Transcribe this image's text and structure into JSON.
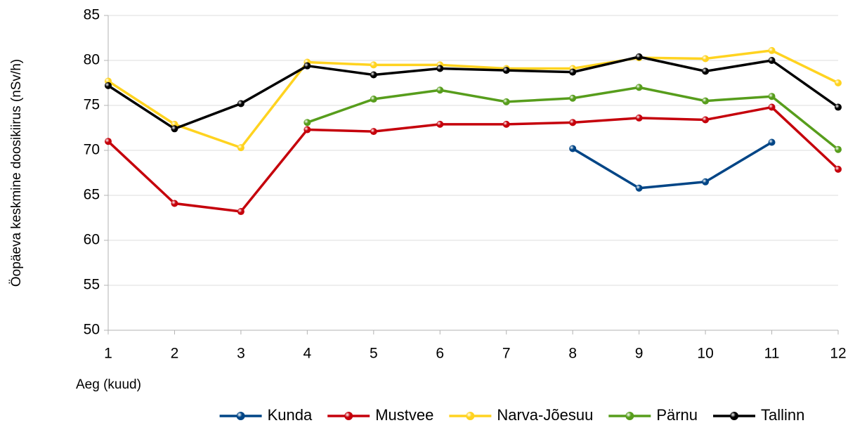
{
  "chart_data": {
    "type": "line",
    "y_label": "Öopäeva keskmine doosikiirus (nSv/h)",
    "x_label": "Aeg (kuud)",
    "x": [
      1,
      2,
      3,
      4,
      5,
      6,
      7,
      8,
      9,
      10,
      11,
      12
    ],
    "xlim": [
      1,
      12
    ],
    "xticks": [
      1,
      2,
      3,
      4,
      5,
      6,
      7,
      8,
      9,
      10,
      11,
      12
    ],
    "ylim": [
      50,
      85
    ],
    "yticks": [
      50,
      55,
      60,
      65,
      70,
      75,
      80,
      85
    ],
    "grid": true,
    "legend": "bottom",
    "series": [
      {
        "name": "Kunda",
        "color": "#004586",
        "values": [
          null,
          null,
          null,
          null,
          null,
          null,
          null,
          70.2,
          65.8,
          66.5,
          70.9,
          null
        ]
      },
      {
        "name": "Mustvee",
        "color": "#c5000b",
        "values": [
          71.0,
          64.1,
          63.2,
          72.3,
          72.1,
          72.9,
          72.9,
          73.1,
          73.6,
          73.4,
          74.8,
          67.9
        ]
      },
      {
        "name": "Narva-Jõesuu",
        "color": "#ffd320",
        "values": [
          77.7,
          72.9,
          70.3,
          79.8,
          79.5,
          79.5,
          79.1,
          79.1,
          80.3,
          80.2,
          81.1,
          77.5
        ]
      },
      {
        "name": "Pärnu",
        "color": "#579d1c",
        "values": [
          null,
          null,
          null,
          73.1,
          75.7,
          76.7,
          75.4,
          75.8,
          77.0,
          75.5,
          76.0,
          70.1
        ]
      },
      {
        "name": "Tallinn",
        "color": "#000000",
        "values": [
          77.2,
          72.4,
          75.2,
          79.4,
          78.4,
          79.1,
          78.9,
          78.7,
          80.4,
          78.8,
          80.0,
          74.8
        ]
      }
    ]
  }
}
